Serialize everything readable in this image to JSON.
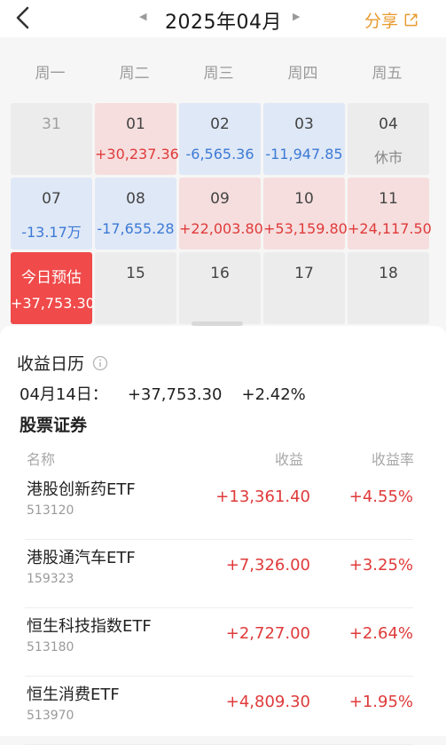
{
  "header": {
    "title": "2025年04月",
    "prev_glyph": "◀",
    "next_glyph": "▶",
    "share_label": "分享"
  },
  "icons": {
    "back": "chevron-left-icon",
    "share": "external-link-icon",
    "info": "info-circle-icon"
  },
  "colors": {
    "gain": "#e03a3a",
    "loss": "#3c7ad6",
    "accent": "#e89a2e",
    "today_bg": "#f04a4a"
  },
  "weekdays": [
    "周一",
    "周二",
    "周三",
    "周四",
    "周五"
  ],
  "calendar": {
    "rows": [
      [
        {
          "day": "31",
          "value": "",
          "state": "dim"
        },
        {
          "day": "01",
          "value": "+30,237.36",
          "state": "gain"
        },
        {
          "day": "02",
          "value": "-6,565.36",
          "state": "loss"
        },
        {
          "day": "03",
          "value": "-11,947.85",
          "state": "loss"
        },
        {
          "day": "04",
          "value": "休市",
          "state": "closed"
        }
      ],
      [
        {
          "day": "07",
          "value": "-13.17万",
          "state": "loss"
        },
        {
          "day": "08",
          "value": "-17,655.28",
          "state": "loss"
        },
        {
          "day": "09",
          "value": "+22,003.80",
          "state": "gain"
        },
        {
          "day": "10",
          "value": "+53,159.80",
          "state": "gain"
        },
        {
          "day": "11",
          "value": "+24,117.50",
          "state": "gain"
        }
      ],
      [
        {
          "day": "今日预估",
          "value": "+37,753.30",
          "state": "today"
        },
        {
          "day": "15",
          "value": "",
          "state": "future"
        },
        {
          "day": "16",
          "value": "",
          "state": "future"
        },
        {
          "day": "17",
          "value": "",
          "state": "future"
        },
        {
          "day": "18",
          "value": "",
          "state": "future"
        }
      ]
    ]
  },
  "panel": {
    "title": "收益日历",
    "summary": {
      "date": "04月14日：",
      "amount": "+37,753.30",
      "rate": "+2.42%"
    },
    "section": "股票证券",
    "columns": {
      "name": "名称",
      "profit": "收益",
      "rate": "收益率"
    },
    "rows": [
      {
        "name": "港股创新药ETF",
        "code": "513120",
        "profit": "+13,361.40",
        "rate": "+4.55%"
      },
      {
        "name": "港股通汽车ETF",
        "code": "159323",
        "profit": "+7,326.00",
        "rate": "+3.25%"
      },
      {
        "name": "恒生科技指数ETF",
        "code": "513180",
        "profit": "+2,727.00",
        "rate": "+2.64%"
      },
      {
        "name": "恒生消费ETF",
        "code": "513970",
        "profit": "+4,809.30",
        "rate": "+1.95%"
      }
    ]
  }
}
